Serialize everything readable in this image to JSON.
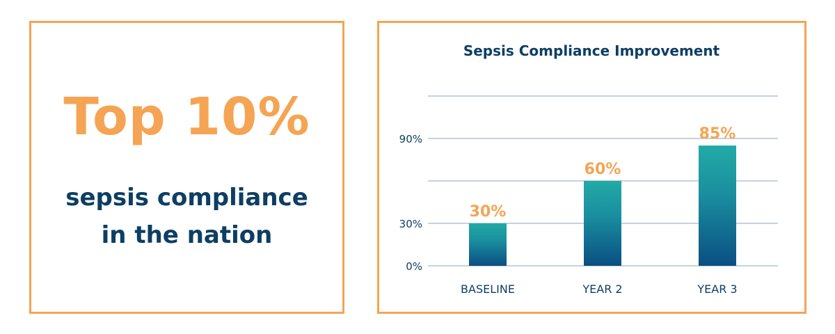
{
  "highlight": {
    "headline": "Top 10%",
    "line1": "sepsis compliance",
    "line2": "in the nation"
  },
  "colors": {
    "accent": "#f5a453",
    "text": "#0d3e63",
    "bar_top": "#22aaa6",
    "bar_bottom": "#0a4f82",
    "grid": "#8ba6bf"
  },
  "chart_data": {
    "type": "bar",
    "title": "Sepsis Compliance Improvement",
    "categories": [
      "BASELINE",
      "YEAR 2",
      "YEAR 3"
    ],
    "values": [
      30,
      60,
      85
    ],
    "data_labels": [
      "30%",
      "60%",
      "85%"
    ],
    "ylim": [
      0,
      120
    ],
    "yticks": [
      0,
      30,
      90
    ],
    "ytick_labels": [
      "0%",
      "30%",
      "90%"
    ],
    "gridlines": [
      0,
      30,
      60,
      90,
      120
    ],
    "grid": true,
    "xlabel": "",
    "ylabel": ""
  }
}
